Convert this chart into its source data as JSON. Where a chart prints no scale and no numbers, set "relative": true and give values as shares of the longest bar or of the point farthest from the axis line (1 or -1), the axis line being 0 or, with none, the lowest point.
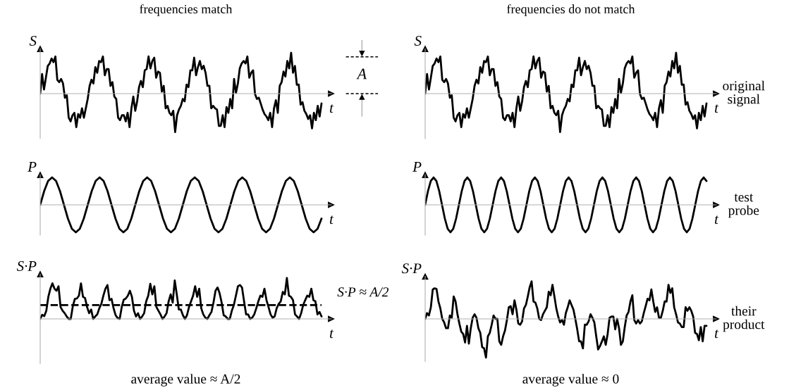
{
  "chart_data": [
    {
      "type": "line",
      "relative": true,
      "title": "frequencies match",
      "xlabel": "t",
      "ylabel": "S",
      "annotations": [
        "A"
      ],
      "categories": [
        null,
        null,
        null,
        null,
        null,
        null,
        null,
        null,
        null,
        null,
        null,
        null,
        null,
        null,
        null,
        null,
        null,
        null,
        null,
        null,
        null,
        null,
        null,
        null,
        null,
        null,
        null,
        null,
        null,
        null,
        null,
        null,
        null,
        null,
        null,
        null,
        null,
        null,
        null,
        null,
        null,
        null,
        null,
        null,
        null,
        null,
        null,
        null,
        null,
        null,
        null,
        null,
        null,
        null,
        null,
        null,
        null,
        null,
        null,
        null,
        null,
        null,
        null,
        null,
        null,
        null,
        null,
        null,
        null,
        null,
        null,
        null,
        null,
        null,
        null,
        null,
        null,
        null,
        null,
        null,
        null,
        null,
        null,
        null,
        null,
        null,
        null,
        null,
        null,
        null,
        null,
        null,
        null,
        null,
        null,
        null,
        null,
        null,
        null,
        null,
        null,
        null,
        null,
        null,
        null,
        null,
        null,
        null,
        null,
        null,
        null,
        null,
        null,
        null,
        null,
        null,
        null,
        null,
        null,
        null,
        null,
        null,
        null,
        null,
        null,
        null,
        null,
        null,
        null,
        null,
        null,
        null,
        null,
        null,
        null,
        null,
        null,
        null,
        null,
        null,
        null,
        null,
        null,
        null,
        null,
        null,
        null,
        null,
        null
      ],
      "series": [
        {
          "color": "#000000",
          "values": [
            0,
            0.48,
            0.1,
            0.39,
            0.68,
            0.74,
            0.86,
            0.77,
            0.91,
            0.34,
            0.28,
            0.36,
            0.25,
            -0.1,
            -0.04,
            -0.59,
            -0.68,
            -0.53,
            -0.47,
            -0.82,
            -0.5,
            -0.59,
            -0.36,
            -0.59,
            -0.36,
            -0.13,
            0.19,
            0.34,
            0.25,
            0.65,
            0.51,
            0.8,
            0.77,
            0.91,
            0.45,
            0.6,
            0.6,
            0.19,
            0.28,
            -0.07,
            -0.13,
            -0.59,
            -0.65,
            -0.53,
            -0.53,
            -0.68,
            -0.47,
            -0.82,
            -0.36,
            -0.07,
            -0.42,
            -0.19,
            0.16,
            0.31,
            0.16,
            0.57,
            0.6,
            0.91,
            0.62,
            0.8,
            0.88,
            0.39,
            0.54,
            0.51,
            0.05,
            0.19,
            -0.36,
            -0.3,
            -0.47,
            -0.53,
            -0.42,
            -0.94,
            -0.53,
            -0.39,
            -0.3,
            -0.13,
            -0.19,
            0.22,
            0.16,
            0.57,
            0.57,
            0.88,
            0.45,
            0.65,
            0.8,
            0.6,
            0.68,
            0.51,
            0.19,
            0.19,
            -0.36,
            -0.3,
            -0.36,
            -0.39,
            -0.79,
            -0.79,
            -0.53,
            -0.82,
            -0.33,
            -0.47,
            -0.13,
            -0.36,
            0.36,
            0.02,
            0.25,
            0.62,
            0.74,
            0.8,
            0.74,
            0.91,
            0.39,
            0.51,
            0.57,
            -0.01,
            -0.13,
            -0.1,
            -0.24,
            -0.39,
            -0.5,
            -0.56,
            -0.65,
            -0.47,
            -0.82,
            -0.36,
            -0.16,
            -0.47,
            0.19,
            0.28,
            0.54,
            0.42,
            0.8,
            0.62,
            1,
            0.51,
            0.68,
            0.22,
            0.22,
            -0.27,
            -0.21,
            -0.42,
            -0.5,
            -0.62,
            -0.53,
            -0.85,
            -0.47,
            -0.65,
            -0.3,
            -0.56,
            -0.24
          ]
        }
      ]
    },
    {
      "type": "line",
      "relative": true,
      "title": "frequencies do not match",
      "xlabel": "t",
      "ylabel": "S",
      "annotations": [
        "original signal"
      ],
      "categories": [
        null,
        null,
        null,
        null,
        null,
        null,
        null,
        null,
        null,
        null,
        null,
        null,
        null,
        null,
        null,
        null,
        null,
        null,
        null,
        null,
        null,
        null,
        null,
        null,
        null,
        null,
        null,
        null,
        null,
        null,
        null,
        null,
        null,
        null,
        null,
        null,
        null,
        null,
        null,
        null,
        null,
        null,
        null,
        null,
        null,
        null,
        null,
        null,
        null,
        null,
        null,
        null,
        null,
        null,
        null,
        null,
        null,
        null,
        null,
        null,
        null,
        null,
        null,
        null,
        null,
        null,
        null,
        null,
        null,
        null,
        null,
        null,
        null,
        null,
        null,
        null,
        null,
        null,
        null,
        null,
        null,
        null,
        null,
        null,
        null,
        null,
        null,
        null,
        null,
        null,
        null,
        null,
        null,
        null,
        null,
        null,
        null,
        null,
        null,
        null,
        null,
        null,
        null,
        null,
        null,
        null,
        null,
        null,
        null,
        null,
        null,
        null,
        null,
        null,
        null,
        null,
        null,
        null,
        null,
        null,
        null,
        null,
        null,
        null,
        null,
        null,
        null,
        null,
        null,
        null,
        null,
        null,
        null,
        null,
        null,
        null,
        null,
        null,
        null,
        null,
        null,
        null,
        null,
        null,
        null,
        null,
        null,
        null,
        null
      ],
      "series": [
        {
          "color": "#000000",
          "values": [
            0,
            0.48,
            0.1,
            0.39,
            0.68,
            0.74,
            0.86,
            0.77,
            0.91,
            0.34,
            0.28,
            0.36,
            0.25,
            -0.1,
            -0.04,
            -0.59,
            -0.68,
            -0.53,
            -0.47,
            -0.82,
            -0.5,
            -0.59,
            -0.36,
            -0.59,
            -0.36,
            -0.13,
            0.19,
            0.34,
            0.25,
            0.65,
            0.51,
            0.8,
            0.77,
            0.91,
            0.45,
            0.6,
            0.6,
            0.19,
            0.28,
            -0.07,
            -0.13,
            -0.59,
            -0.65,
            -0.53,
            -0.53,
            -0.68,
            -0.47,
            -0.82,
            -0.36,
            -0.07,
            -0.42,
            -0.19,
            0.16,
            0.31,
            0.16,
            0.57,
            0.6,
            0.91,
            0.62,
            0.8,
            0.88,
            0.39,
            0.54,
            0.51,
            0.05,
            0.19,
            -0.36,
            -0.3,
            -0.47,
            -0.53,
            -0.42,
            -0.94,
            -0.53,
            -0.39,
            -0.3,
            -0.13,
            -0.19,
            0.22,
            0.16,
            0.57,
            0.57,
            0.88,
            0.45,
            0.65,
            0.8,
            0.6,
            0.68,
            0.51,
            0.19,
            0.19,
            -0.36,
            -0.3,
            -0.36,
            -0.39,
            -0.79,
            -0.79,
            -0.53,
            -0.82,
            -0.33,
            -0.47,
            -0.13,
            -0.36,
            0.36,
            0.02,
            0.25,
            0.62,
            0.74,
            0.8,
            0.74,
            0.91,
            0.39,
            0.51,
            0.57,
            -0.01,
            -0.13,
            -0.1,
            -0.24,
            -0.39,
            -0.5,
            -0.56,
            -0.65,
            -0.47,
            -0.82,
            -0.36,
            -0.16,
            -0.47,
            0.19,
            0.28,
            0.54,
            0.42,
            0.8,
            0.62,
            1,
            0.51,
            0.68,
            0.22,
            0.22,
            -0.27,
            -0.21,
            -0.42,
            -0.5,
            -0.62,
            -0.53,
            -0.85,
            -0.47,
            -0.65,
            -0.3,
            -0.56,
            -0.24
          ]
        }
      ]
    },
    {
      "type": "line",
      "relative": true,
      "xlabel": "t",
      "ylabel": "P",
      "categories": [
        null,
        null,
        null,
        null,
        null,
        null,
        null,
        null,
        null,
        null,
        null,
        null,
        null,
        null,
        null,
        null,
        null,
        null,
        null,
        null,
        null,
        null,
        null,
        null,
        null,
        null,
        null,
        null,
        null,
        null,
        null,
        null,
        null,
        null,
        null,
        null,
        null,
        null,
        null,
        null,
        null,
        null,
        null,
        null,
        null,
        null,
        null,
        null,
        null,
        null,
        null,
        null,
        null,
        null,
        null,
        null,
        null,
        null,
        null,
        null,
        null,
        null,
        null,
        null,
        null,
        null,
        null,
        null,
        null,
        null,
        null,
        null
      ],
      "series": [
        {
          "color": "#000000",
          "values": [
            0,
            0.5,
            0.87,
            1,
            0.87,
            0.5,
            0,
            -0.5,
            -0.87,
            -1,
            -0.87,
            -0.5,
            0,
            0.5,
            0.87,
            1,
            0.87,
            0.5,
            0,
            -0.5,
            -0.87,
            -1,
            -0.87,
            -0.5,
            0,
            0.5,
            0.87,
            1,
            0.87,
            0.5,
            0,
            -0.5,
            -0.87,
            -1,
            -0.87,
            -0.5,
            0,
            0.5,
            0.87,
            1,
            0.87,
            0.5,
            0,
            -0.5,
            -0.87,
            -1,
            -0.87,
            -0.5,
            0,
            0.5,
            0.87,
            1,
            0.87,
            0.5,
            0,
            -0.5,
            -0.87,
            -1,
            -0.87,
            -0.5,
            0,
            0.5,
            0.87,
            1,
            0.87,
            0.5,
            0,
            -0.5,
            -0.87,
            -1,
            -0.87,
            -0.5
          ]
        }
      ]
    },
    {
      "type": "line",
      "relative": true,
      "xlabel": "t",
      "ylabel": "P",
      "annotations": [
        "test probe"
      ],
      "categories": [
        null,
        null,
        null,
        null,
        null,
        null,
        null,
        null,
        null,
        null,
        null,
        null,
        null,
        null,
        null,
        null,
        null,
        null,
        null,
        null,
        null,
        null,
        null,
        null,
        null,
        null,
        null,
        null,
        null,
        null,
        null,
        null,
        null,
        null,
        null,
        null,
        null,
        null,
        null,
        null,
        null,
        null,
        null,
        null,
        null,
        null,
        null,
        null,
        null,
        null,
        null,
        null,
        null,
        null,
        null,
        null,
        null,
        null,
        null,
        null,
        null,
        null,
        null,
        null,
        null,
        null,
        null,
        null,
        null,
        null,
        null,
        null,
        null,
        null,
        null,
        null,
        null,
        null,
        null,
        null,
        null,
        null,
        null,
        null,
        null,
        null,
        null,
        null,
        null,
        null,
        null,
        null,
        null,
        null,
        null,
        null,
        null,
        null,
        null,
        null,
        null
      ],
      "series": [
        {
          "color": "#000000",
          "values": [
            0,
            0.5,
            0.87,
            1,
            0.87,
            0.5,
            0,
            -0.5,
            -0.87,
            -1,
            -0.87,
            -0.5,
            0,
            0.5,
            0.87,
            1,
            0.87,
            0.5,
            0,
            -0.5,
            -0.87,
            -1,
            -0.87,
            -0.5,
            0,
            0.5,
            0.87,
            1,
            0.87,
            0.5,
            0,
            -0.5,
            -0.87,
            -1,
            -0.87,
            -0.5,
            0,
            0.5,
            0.87,
            1,
            0.87,
            0.5,
            0,
            -0.5,
            -0.87,
            -1,
            -0.87,
            -0.5,
            0,
            0.5,
            0.87,
            1,
            0.87,
            0.5,
            0,
            -0.5,
            -0.87,
            -1,
            -0.87,
            -0.5,
            0,
            0.5,
            0.87,
            1,
            0.87,
            0.5,
            0,
            -0.5,
            -0.87,
            -1,
            -0.87,
            -0.5,
            0,
            0.5,
            0.87,
            1,
            0.87,
            0.5,
            0,
            -0.5,
            -0.87,
            -1,
            -0.87,
            -0.5,
            0,
            0.5,
            0.87,
            1,
            0.87,
            0.5,
            0,
            -0.5,
            -0.87,
            -1,
            -0.87,
            -0.5,
            0,
            0.5,
            0.87,
            1,
            0.87
          ]
        }
      ]
    },
    {
      "type": "line",
      "relative": true,
      "xlabel": "t",
      "ylabel": "S·P",
      "annotations": [
        "average value ≈ A/2"
      ],
      "ref_lines": [
        {
          "axis": "y",
          "value": 0.34,
          "label": "S·P ≈ A/2",
          "color": "#000000",
          "line_style": "dashed"
        }
      ],
      "categories": [
        null,
        null,
        null,
        null,
        null,
        null,
        null,
        null,
        null,
        null,
        null,
        null,
        null,
        null,
        null,
        null,
        null,
        null,
        null,
        null,
        null,
        null,
        null,
        null,
        null,
        null,
        null,
        null,
        null,
        null,
        null,
        null,
        null,
        null,
        null,
        null,
        null,
        null,
        null,
        null,
        null,
        null,
        null,
        null,
        null,
        null,
        null,
        null,
        null,
        null,
        null,
        null,
        null,
        null,
        null,
        null,
        null,
        null,
        null,
        null,
        null,
        null,
        null,
        null,
        null,
        null,
        null,
        null,
        null,
        null,
        null,
        null,
        null,
        null,
        null,
        null,
        null,
        null,
        null,
        null,
        null,
        null,
        null,
        null,
        null,
        null,
        null,
        null,
        null,
        null,
        null,
        null,
        null,
        null,
        null,
        null,
        null,
        null,
        null,
        null,
        null,
        null,
        null,
        null,
        null,
        null,
        null,
        null,
        null,
        null,
        null,
        null,
        null,
        null,
        null,
        null,
        null,
        null,
        null,
        null,
        null,
        null,
        null,
        null,
        null,
        null,
        null,
        null,
        null,
        null,
        null,
        null,
        null,
        null,
        null,
        null,
        null,
        null,
        null
      ],
      "series": [
        {
          "color": "#000000",
          "values": [
            0,
            0.1,
            0.07,
            0.2,
            0.54,
            0.74,
            0.87,
            0.74,
            0.69,
            0.8,
            0.29,
            0.2,
            0.14,
            0.06,
            0,
            0,
            0.31,
            0.49,
            0.5,
            0.57,
            0.87,
            0.54,
            0.51,
            0.29,
            0.14,
            0.23,
            0,
            0.06,
            0.11,
            0.26,
            0.37,
            0.57,
            0.74,
            0.83,
            0.46,
            0.49,
            0.26,
            0.09,
            0.02,
            0,
            0.29,
            0.47,
            0.5,
            0.57,
            0.69,
            0.54,
            0.2,
            0.06,
            0.14,
            0,
            0.06,
            0.14,
            0.43,
            0.57,
            0.86,
            0.6,
            0.8,
            0.29,
            0.2,
            0.11,
            0,
            0.06,
            0.14,
            0.43,
            0.6,
            0.4,
            0.94,
            0.6,
            0.23,
            0.23,
            0.09,
            0,
            0.09,
            0.29,
            0.43,
            0.57,
            0.8,
            0.54,
            0.74,
            0.26,
            0.11,
            0.03,
            0,
            0.09,
            0.17,
            0.4,
            0.69,
            0.77,
            0.63,
            0.4,
            0.09,
            0.06,
            0,
            0,
            0.2,
            0.34,
            0.57,
            0.8,
            0.83,
            0.77,
            0.43,
            0.11,
            0.11,
            0,
            0.03,
            0.11,
            0.26,
            0.43,
            0.57,
            0.54,
            0.74,
            0.46,
            0.29,
            0.11,
            0.03,
            0.06,
            0.26,
            0.37,
            0.43,
            0.66,
            0.6,
            1,
            0.57,
            0.54,
            0.46,
            0.11,
            0.06,
            0,
            0.14,
            0.34,
            0.46,
            0.57,
            0.54,
            0.74,
            0.46,
            0.43,
            0.11,
            0.17,
            0.06
          ]
        }
      ]
    },
    {
      "type": "line",
      "relative": true,
      "xlabel": "t",
      "ylabel": "S·P",
      "annotations": [
        "their product",
        "average value ≈ 0"
      ],
      "categories": [
        null,
        null,
        null,
        null,
        null,
        null,
        null,
        null,
        null,
        null,
        null,
        null,
        null,
        null,
        null,
        null,
        null,
        null,
        null,
        null,
        null,
        null,
        null,
        null,
        null,
        null,
        null,
        null,
        null,
        null,
        null,
        null,
        null,
        null,
        null,
        null,
        null,
        null,
        null,
        null,
        null,
        null,
        null,
        null,
        null,
        null,
        null,
        null,
        null,
        null,
        null,
        null,
        null,
        null,
        null,
        null,
        null,
        null,
        null,
        null,
        null,
        null,
        null,
        null,
        null,
        null,
        null,
        null,
        null,
        null,
        null,
        null,
        null,
        null,
        null,
        null,
        null,
        null,
        null,
        null,
        null,
        null,
        null,
        null,
        null,
        null,
        null,
        null,
        null,
        null,
        null,
        null,
        null,
        null,
        null,
        null,
        null,
        null,
        null,
        null,
        null,
        null,
        null,
        null,
        null,
        null,
        null,
        null,
        null,
        null,
        null,
        null,
        null,
        null,
        null,
        null,
        null,
        null,
        null,
        null,
        null,
        null,
        null,
        null,
        null,
        null,
        null,
        null,
        null,
        null,
        null,
        null,
        null,
        null,
        null,
        null,
        null,
        null,
        null,
        null,
        null,
        null,
        null,
        null,
        null,
        null,
        null,
        null,
        null
      ],
      "series": [
        {
          "color": "#000000",
          "values": [
            0,
            0.15,
            0.09,
            0.3,
            0.76,
            0.79,
            0.77,
            0.45,
            0.27,
            0,
            -0.09,
            -0.24,
            -0.24,
            0.09,
            0.03,
            0.58,
            0.45,
            0.12,
            -0.12,
            -0.33,
            -0.39,
            -0.61,
            -0.18,
            -0.64,
            -0.24,
            0.03,
            0.12,
            0.03,
            -0.24,
            -0.36,
            -0.73,
            -0.76,
            -1,
            -0.45,
            -0.36,
            -0.15,
            0.09,
            0,
            0,
            -0.58,
            -0.67,
            -0.45,
            -0.3,
            -0.03,
            0.3,
            0.33,
            0.12,
            0.48,
            0.24,
            -0.12,
            -0.15,
            -0.06,
            0.27,
            0.36,
            0.58,
            0.82,
            0.97,
            0.45,
            0.42,
            0.27,
            0,
            -0.03,
            0.12,
            0.21,
            0.3,
            0.7,
            0.61,
            0.88,
            0.58,
            0.27,
            0.06,
            -0.09,
            -0.03,
            -0.15,
            0.15,
            0.3,
            0.48,
            0.36,
            0.24,
            0,
            -0.27,
            -0.58,
            -0.58,
            -0.76,
            -0.15,
            -0.15,
            -0.06,
            0.12,
            0.03,
            -0.09,
            -0.45,
            -0.79,
            -0.7,
            -0.58,
            -0.45,
            -0.67,
            -0.39,
            0.03,
            0.06,
            0.06,
            -0.27,
            0,
            -0.24,
            -0.67,
            -0.58,
            -0.21,
            0.09,
            0.18,
            0.45,
            0.61,
            -0.03,
            -0.12,
            -0.03,
            -0.12,
            -0.06,
            0.15,
            0.33,
            0.52,
            0.48,
            0.76,
            0.45,
            0.18,
            0.3,
            0.03,
            0.03,
            0.21,
            0.45,
            0.45,
            0.88,
            0.67,
            0.79,
            0.3,
            0.12,
            -0.09,
            -0.12,
            -0.21,
            -0.21,
            0.3,
            0.21,
            0.3,
            0.21,
            0.06,
            -0.36,
            -0.39,
            -0.55,
            -0.21,
            -0.58,
            -0.18,
            -0.18
          ]
        }
      ]
    }
  ]
}
